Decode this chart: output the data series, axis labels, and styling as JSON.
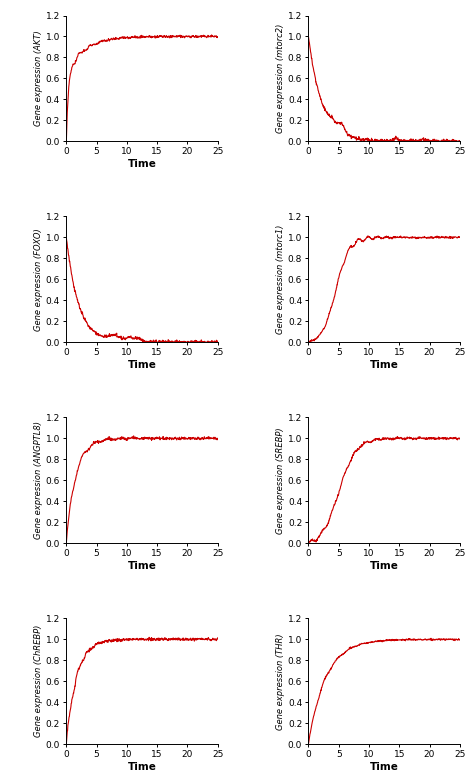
{
  "panels": [
    {
      "ylabel": "Gene expression (AKT)",
      "xlabel": "Time",
      "curve_type": "akt",
      "xlim": [
        0,
        25
      ],
      "ylim": [
        0,
        1.2
      ],
      "yticks": [
        0,
        0.2,
        0.4,
        0.6,
        0.8,
        1.0,
        1.2
      ],
      "xticks": [
        0,
        5,
        10,
        15,
        20,
        25
      ],
      "show_xlabel": true
    },
    {
      "ylabel": "Gene expression (mtorc2)",
      "xlabel": "",
      "curve_type": "mtorc2",
      "xlim": [
        0,
        25
      ],
      "ylim": [
        0,
        1.2
      ],
      "yticks": [
        0,
        0.2,
        0.4,
        0.6,
        0.8,
        1.0,
        1.2
      ],
      "xticks": [
        0,
        5,
        10,
        15,
        20,
        25
      ],
      "show_xlabel": false
    },
    {
      "ylabel": "Gene expression (FOXO)",
      "xlabel": "Time",
      "curve_type": "foxo",
      "xlim": [
        0,
        25
      ],
      "ylim": [
        0,
        1.2
      ],
      "yticks": [
        0,
        0.2,
        0.4,
        0.6,
        0.8,
        1.0,
        1.2
      ],
      "xticks": [
        0,
        5,
        10,
        15,
        20,
        25
      ],
      "show_xlabel": true
    },
    {
      "ylabel": "Gene expression (mtorc1)",
      "xlabel": "Time",
      "curve_type": "mtorc1",
      "xlim": [
        0,
        25
      ],
      "ylim": [
        0,
        1.2
      ],
      "yticks": [
        0,
        0.2,
        0.4,
        0.6,
        0.8,
        1.0,
        1.2
      ],
      "xticks": [
        0,
        5,
        10,
        15,
        20,
        25
      ],
      "show_xlabel": true
    },
    {
      "ylabel": "Gene expression (ANGPTL8)",
      "xlabel": "Time",
      "curve_type": "angptl8",
      "xlim": [
        0,
        25
      ],
      "ylim": [
        0,
        1.2
      ],
      "yticks": [
        0,
        0.2,
        0.4,
        0.6,
        0.8,
        1.0,
        1.2
      ],
      "xticks": [
        0,
        5,
        10,
        15,
        20,
        25
      ],
      "show_xlabel": true
    },
    {
      "ylabel": "Gene expression (SREBP)",
      "xlabel": "Time",
      "curve_type": "srebp",
      "xlim": [
        0,
        25
      ],
      "ylim": [
        0,
        1.2
      ],
      "yticks": [
        0,
        0.2,
        0.4,
        0.6,
        0.8,
        1.0,
        1.2
      ],
      "xticks": [
        0,
        5,
        10,
        15,
        20,
        25
      ],
      "show_xlabel": true
    },
    {
      "ylabel": "Gene expression (ChREBP)",
      "xlabel": "Time",
      "curve_type": "chrebp",
      "xlim": [
        0,
        25
      ],
      "ylim": [
        0,
        1.2
      ],
      "yticks": [
        0,
        0.2,
        0.4,
        0.6,
        0.8,
        1.0,
        1.2
      ],
      "xticks": [
        0,
        5,
        10,
        15,
        20,
        25
      ],
      "show_xlabel": true
    },
    {
      "ylabel": "Gene expression (THR)",
      "xlabel": "Time",
      "curve_type": "thr",
      "xlim": [
        0,
        25
      ],
      "ylim": [
        0,
        1.2
      ],
      "yticks": [
        0,
        0.2,
        0.4,
        0.6,
        0.8,
        1.0,
        1.2
      ],
      "xticks": [
        0,
        5,
        10,
        15,
        20,
        25
      ],
      "show_xlabel": true
    }
  ],
  "line_color": "#CC0000",
  "line_width": 0.8,
  "noise_seed": 42
}
